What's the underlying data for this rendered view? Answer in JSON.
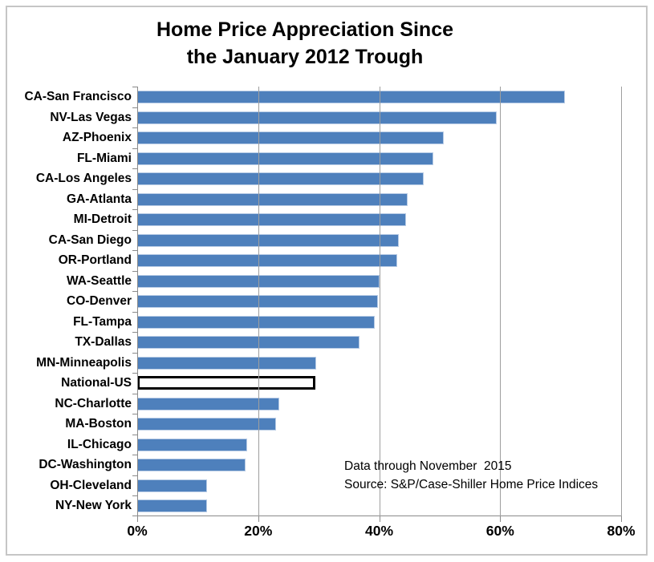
{
  "chart_data": {
    "type": "bar",
    "orientation": "horizontal-bars",
    "title_lines": [
      "Home Price Appreciation Since",
      "the January 2012 Trough"
    ],
    "categories": [
      "CA-San Francisco",
      "NV-Las Vegas",
      "AZ-Phoenix",
      "FL-Miami",
      "CA-Los Angeles",
      "GA-Atlanta",
      "MI-Detroit",
      "CA-San Diego",
      "OR-Portland",
      "WA-Seattle",
      "CO-Denver",
      "FL-Tampa",
      "TX-Dallas",
      "MN-Minneapolis",
      "National-US",
      "NC-Charlotte",
      "MA-Boston",
      "IL-Chicago",
      "DC-Washington",
      "OH-Cleveland",
      "NY-New York"
    ],
    "values": [
      70.7,
      59.5,
      50.7,
      48.9,
      47.4,
      44.7,
      44.4,
      43.2,
      43.0,
      40.1,
      39.8,
      39.3,
      36.7,
      29.6,
      29.5,
      23.5,
      22.9,
      18.2,
      17.9,
      11.6,
      11.6
    ],
    "value_unit": "percent",
    "highlight_category": "National-US",
    "x_axis": {
      "min": 0,
      "max": 80,
      "tick_step": 20,
      "tick_labels": [
        "0%",
        "20%",
        "40%",
        "60%",
        "80%"
      ]
    },
    "grid": "vertical-major-on",
    "legend": "none",
    "annotation_lines": [
      "Data through November  2015",
      "Source: S&P/Case-Shiller Home Price Indices"
    ],
    "colors": {
      "bar_fill": "#4E80BC",
      "bar_border": "#B7CBE5",
      "highlight_fill": "#FFFFFF",
      "highlight_border": "#000000",
      "gridline": "#9E9E9E",
      "axis": "#8A8A8A",
      "frame_border": "#C6C6C6",
      "text": "#000000",
      "background": "#FFFFFF"
    }
  }
}
